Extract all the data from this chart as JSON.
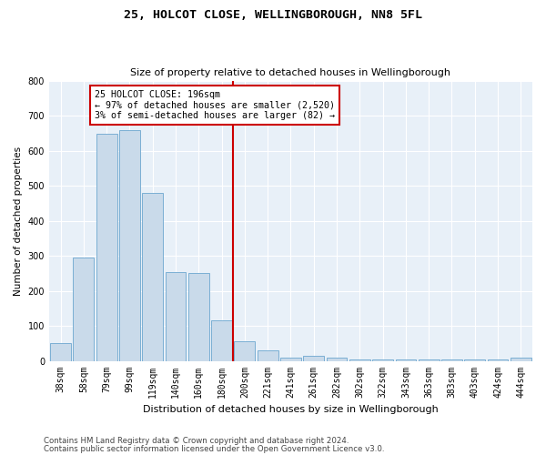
{
  "title": "25, HOLCOT CLOSE, WELLINGBOROUGH, NN8 5FL",
  "subtitle": "Size of property relative to detached houses in Wellingborough",
  "xlabel": "Distribution of detached houses by size in Wellingborough",
  "ylabel": "Number of detached properties",
  "bar_labels": [
    "38sqm",
    "58sqm",
    "79sqm",
    "99sqm",
    "119sqm",
    "140sqm",
    "160sqm",
    "180sqm",
    "200sqm",
    "221sqm",
    "241sqm",
    "261sqm",
    "282sqm",
    "302sqm",
    "322sqm",
    "343sqm",
    "363sqm",
    "383sqm",
    "403sqm",
    "424sqm",
    "444sqm"
  ],
  "bar_values": [
    50,
    295,
    650,
    660,
    480,
    255,
    250,
    115,
    55,
    30,
    10,
    15,
    8,
    5,
    5,
    5,
    5,
    5,
    5,
    5,
    10
  ],
  "bar_color": "#c9daea",
  "bar_edge_color": "#7bafd4",
  "property_line_x": 7.5,
  "property_line_color": "#cc0000",
  "annotation_text": "25 HOLCOT CLOSE: 196sqm\n← 97% of detached houses are smaller (2,520)\n3% of semi-detached houses are larger (82) →",
  "annotation_box_color": "#cc0000",
  "ylim": [
    0,
    800
  ],
  "yticks": [
    0,
    100,
    200,
    300,
    400,
    500,
    600,
    700,
    800
  ],
  "footer1": "Contains HM Land Registry data © Crown copyright and database right 2024.",
  "footer2": "Contains public sector information licensed under the Open Government Licence v3.0.",
  "bg_color": "#e8f0f8",
  "fig_bg_color": "#ffffff",
  "title_fontsize": 9.5,
  "subtitle_fontsize": 8,
  "ylabel_fontsize": 7.5,
  "xlabel_fontsize": 8,
  "tick_fontsize": 7,
  "annot_fontsize": 7.2
}
